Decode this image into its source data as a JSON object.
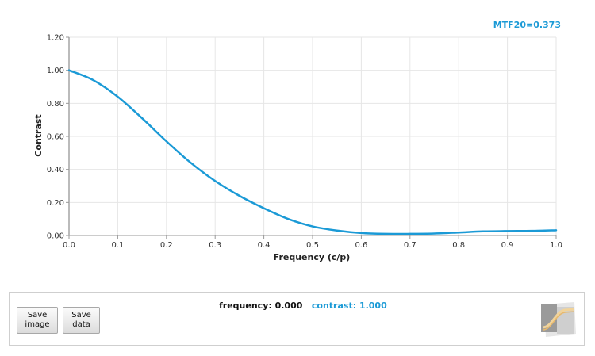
{
  "chart_data": {
    "type": "line",
    "xlabel": "Frequency (c/p)",
    "ylabel": "Contrast",
    "xlim": [
      0,
      1.0
    ],
    "ylim": [
      0,
      1.2
    ],
    "xticks": [
      "0.0",
      "0.1",
      "0.2",
      "0.3",
      "0.4",
      "0.5",
      "0.6",
      "0.7",
      "0.8",
      "0.9",
      "1.0"
    ],
    "yticks": [
      "0.00",
      "0.20",
      "0.40",
      "0.60",
      "0.80",
      "1.00",
      "1.20"
    ],
    "grid": true,
    "annotation": "MTF20=0.373",
    "series": [
      {
        "color": "#1b9ad6",
        "x": [
          0.0,
          0.05,
          0.1,
          0.15,
          0.2,
          0.25,
          0.3,
          0.35,
          0.4,
          0.45,
          0.5,
          0.55,
          0.6,
          0.65,
          0.7,
          0.75,
          0.8,
          0.85,
          0.9,
          0.95,
          1.0
        ],
        "y": [
          1.0,
          0.94,
          0.84,
          0.71,
          0.57,
          0.44,
          0.33,
          0.24,
          0.165,
          0.1,
          0.055,
          0.03,
          0.015,
          0.01,
          0.01,
          0.012,
          0.018,
          0.025,
          0.027,
          0.028,
          0.032
        ]
      }
    ]
  },
  "controls": {
    "save_image_label": "Save image",
    "save_data_label": "Save data",
    "frequency_text": "frequency: 0.000",
    "contrast_text": "contrast: 1.000"
  },
  "logo_icon": "mtf-logo-icon"
}
